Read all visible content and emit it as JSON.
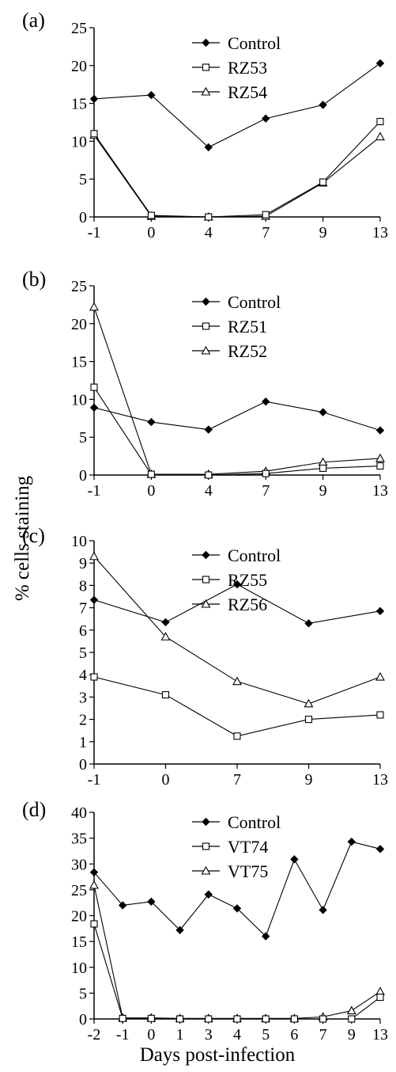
{
  "figure": {
    "ylabel": "% cells staining",
    "xlabel": "Days post-infection"
  },
  "chart_data": [
    {
      "type": "line",
      "panel_label": "(a)",
      "categories": [
        "-1",
        "0",
        "4",
        "7",
        "9",
        "13"
      ],
      "ylim": [
        0,
        25
      ],
      "yticks": [
        0,
        5,
        10,
        15,
        20,
        25
      ],
      "legend_position": "top-right",
      "series": [
        {
          "name": "Control",
          "marker": "diamond",
          "values": [
            15.6,
            16.1,
            9.2,
            13.0,
            14.8,
            20.3
          ]
        },
        {
          "name": "RZ53",
          "marker": "square",
          "values": [
            11.0,
            0.2,
            0.0,
            0.3,
            4.6,
            12.6
          ]
        },
        {
          "name": "RZ54",
          "marker": "triangle",
          "values": [
            10.8,
            0.1,
            0.0,
            0.1,
            4.5,
            10.6
          ]
        }
      ]
    },
    {
      "type": "line",
      "panel_label": "(b)",
      "categories": [
        "-1",
        "0",
        "4",
        "7",
        "9",
        "13"
      ],
      "ylim": [
        0,
        25
      ],
      "yticks": [
        0,
        5,
        10,
        15,
        20,
        25
      ],
      "legend_position": "top-right",
      "series": [
        {
          "name": "Control",
          "marker": "diamond",
          "values": [
            8.9,
            7.0,
            6.0,
            9.7,
            8.3,
            5.9
          ]
        },
        {
          "name": "RZ51",
          "marker": "square",
          "values": [
            11.6,
            0.1,
            0.0,
            0.2,
            0.9,
            1.2
          ]
        },
        {
          "name": "RZ52",
          "marker": "triangle",
          "values": [
            22.2,
            0.1,
            0.1,
            0.5,
            1.7,
            2.2
          ]
        }
      ]
    },
    {
      "type": "line",
      "panel_label": "(c)",
      "categories": [
        "-1",
        "0",
        "7",
        "9",
        "13"
      ],
      "ylim": [
        0,
        10
      ],
      "yticks": [
        0,
        1,
        2,
        3,
        4,
        5,
        6,
        7,
        8,
        9,
        10
      ],
      "legend_position": "top-right",
      "series": [
        {
          "name": "Control",
          "marker": "diamond",
          "values": [
            7.35,
            6.35,
            8.05,
            6.3,
            6.85
          ]
        },
        {
          "name": "RZ55",
          "marker": "square",
          "values": [
            3.9,
            3.1,
            1.25,
            2.0,
            2.2
          ]
        },
        {
          "name": "RZ56",
          "marker": "triangle",
          "values": [
            9.3,
            5.7,
            3.7,
            2.7,
            3.9
          ]
        }
      ]
    },
    {
      "type": "line",
      "panel_label": "(d)",
      "categories": [
        "-2",
        "-1",
        "0",
        "1",
        "3",
        "4",
        "5",
        "6",
        "7",
        "9",
        "13"
      ],
      "ylim": [
        0,
        40
      ],
      "yticks": [
        0,
        5,
        10,
        15,
        20,
        25,
        30,
        35,
        40
      ],
      "legend_position": "top-right",
      "series": [
        {
          "name": "Control",
          "marker": "diamond",
          "values": [
            28.4,
            22.0,
            22.7,
            17.2,
            24.1,
            21.4,
            16.0,
            30.9,
            21.1,
            34.3,
            32.9
          ]
        },
        {
          "name": "VT74",
          "marker": "square",
          "values": [
            18.4,
            0.1,
            0.1,
            0.0,
            0.0,
            0.0,
            0.0,
            0.0,
            0.0,
            0.0,
            4.2
          ]
        },
        {
          "name": "VT75",
          "marker": "triangle",
          "values": [
            25.9,
            0.2,
            0.2,
            0.1,
            0.1,
            0.1,
            0.1,
            0.1,
            0.4,
            1.6,
            5.3
          ]
        }
      ]
    }
  ]
}
